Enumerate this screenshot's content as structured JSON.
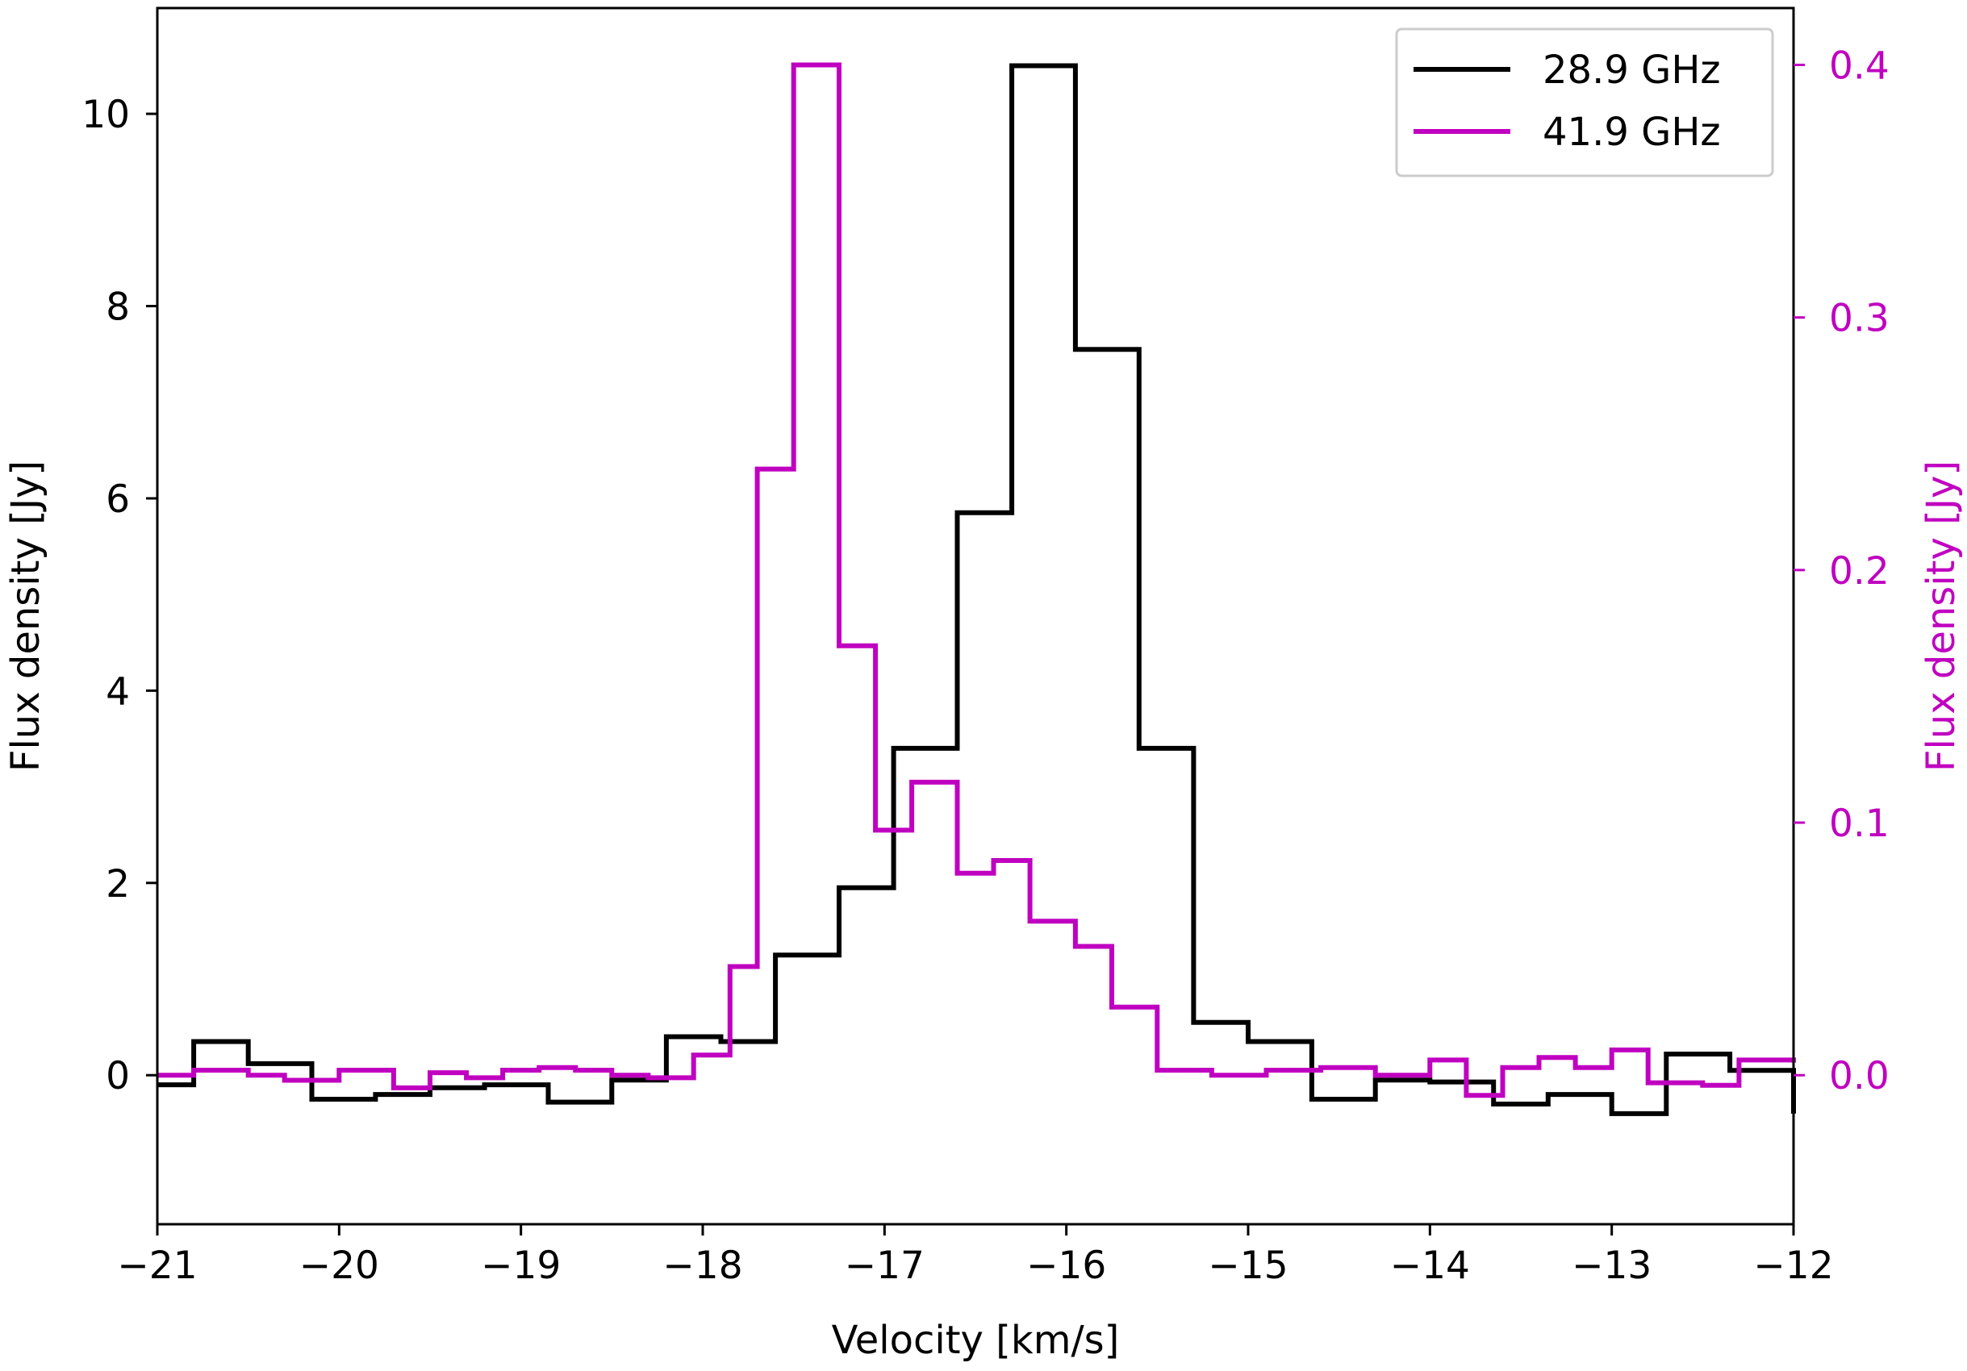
{
  "chart_data": {
    "type": "line",
    "drawstyle": "steps",
    "xlabel": "Velocity [km/s]",
    "ylabel_left": "Flux density [Jy]",
    "ylabel_right": "Flux density [Jy]",
    "xlim": [
      -21,
      -12
    ],
    "ylim_left": [
      -1.55,
      11.1
    ],
    "ylim_right": [
      -0.059,
      0.4225
    ],
    "xticks": [
      -21,
      -20,
      -19,
      -18,
      -17,
      -16,
      -15,
      -14,
      -13,
      -12
    ],
    "xtick_labels": [
      "−21",
      "−20",
      "−19",
      "−18",
      "−17",
      "−16",
      "−15",
      "−14",
      "−13",
      "−12"
    ],
    "yticks_left": [
      0,
      2,
      4,
      6,
      8,
      10
    ],
    "ytick_labels_left": [
      "0",
      "2",
      "4",
      "6",
      "8",
      "10"
    ],
    "yticks_right": [
      0.0,
      0.1,
      0.2,
      0.3,
      0.4
    ],
    "ytick_labels_right": [
      "0.0",
      "0.1",
      "0.2",
      "0.3",
      "0.4"
    ],
    "grid": false,
    "legend_position": "top-right",
    "series": [
      {
        "name": "28.9 GHz",
        "axis": "left",
        "color": "#000000",
        "x": [
          -21.0,
          -20.8,
          -20.5,
          -20.15,
          -19.8,
          -19.5,
          -19.2,
          -18.85,
          -18.5,
          -18.2,
          -17.9,
          -17.6,
          -17.25,
          -16.95,
          -16.6,
          -16.3,
          -15.95,
          -15.6,
          -15.3,
          -15.0,
          -14.65,
          -14.3,
          -14.0,
          -13.65,
          -13.35,
          -13.0,
          -12.7,
          -12.35,
          -12.0
        ],
        "y": [
          -0.1,
          0.35,
          0.12,
          -0.25,
          -0.2,
          -0.13,
          -0.1,
          -0.28,
          -0.05,
          0.4,
          0.35,
          1.25,
          1.95,
          3.4,
          5.85,
          10.5,
          7.55,
          3.4,
          0.55,
          0.35,
          -0.25,
          -0.05,
          -0.07,
          -0.3,
          -0.2,
          -0.4,
          0.22,
          0.05,
          -0.4
        ]
      },
      {
        "name": "41.9 GHz",
        "axis": "right",
        "color": "#c000c0",
        "x": [
          -21.0,
          -20.8,
          -20.5,
          -20.3,
          -20.0,
          -19.7,
          -19.5,
          -19.3,
          -19.1,
          -18.9,
          -18.7,
          -18.5,
          -18.3,
          -18.05,
          -17.85,
          -17.7,
          -17.5,
          -17.25,
          -17.05,
          -16.85,
          -16.6,
          -16.4,
          -16.2,
          -15.95,
          -15.75,
          -15.5,
          -15.2,
          -14.9,
          -14.6,
          -14.3,
          -14.0,
          -13.8,
          -13.6,
          -13.4,
          -13.2,
          -13.0,
          -12.8,
          -12.5,
          -12.3,
          -12.0
        ],
        "y": [
          0.0,
          0.002,
          0.0,
          -0.002,
          0.002,
          -0.005,
          0.001,
          -0.001,
          0.002,
          0.003,
          0.002,
          0.0,
          -0.001,
          0.008,
          0.043,
          0.24,
          0.4,
          0.17,
          0.097,
          0.116,
          0.08,
          0.085,
          0.061,
          0.051,
          0.027,
          0.002,
          0.0,
          0.002,
          0.003,
          0.0,
          0.006,
          -0.008,
          0.003,
          0.007,
          0.003,
          0.01,
          -0.003,
          -0.004,
          0.006,
          0.005
        ]
      }
    ]
  }
}
